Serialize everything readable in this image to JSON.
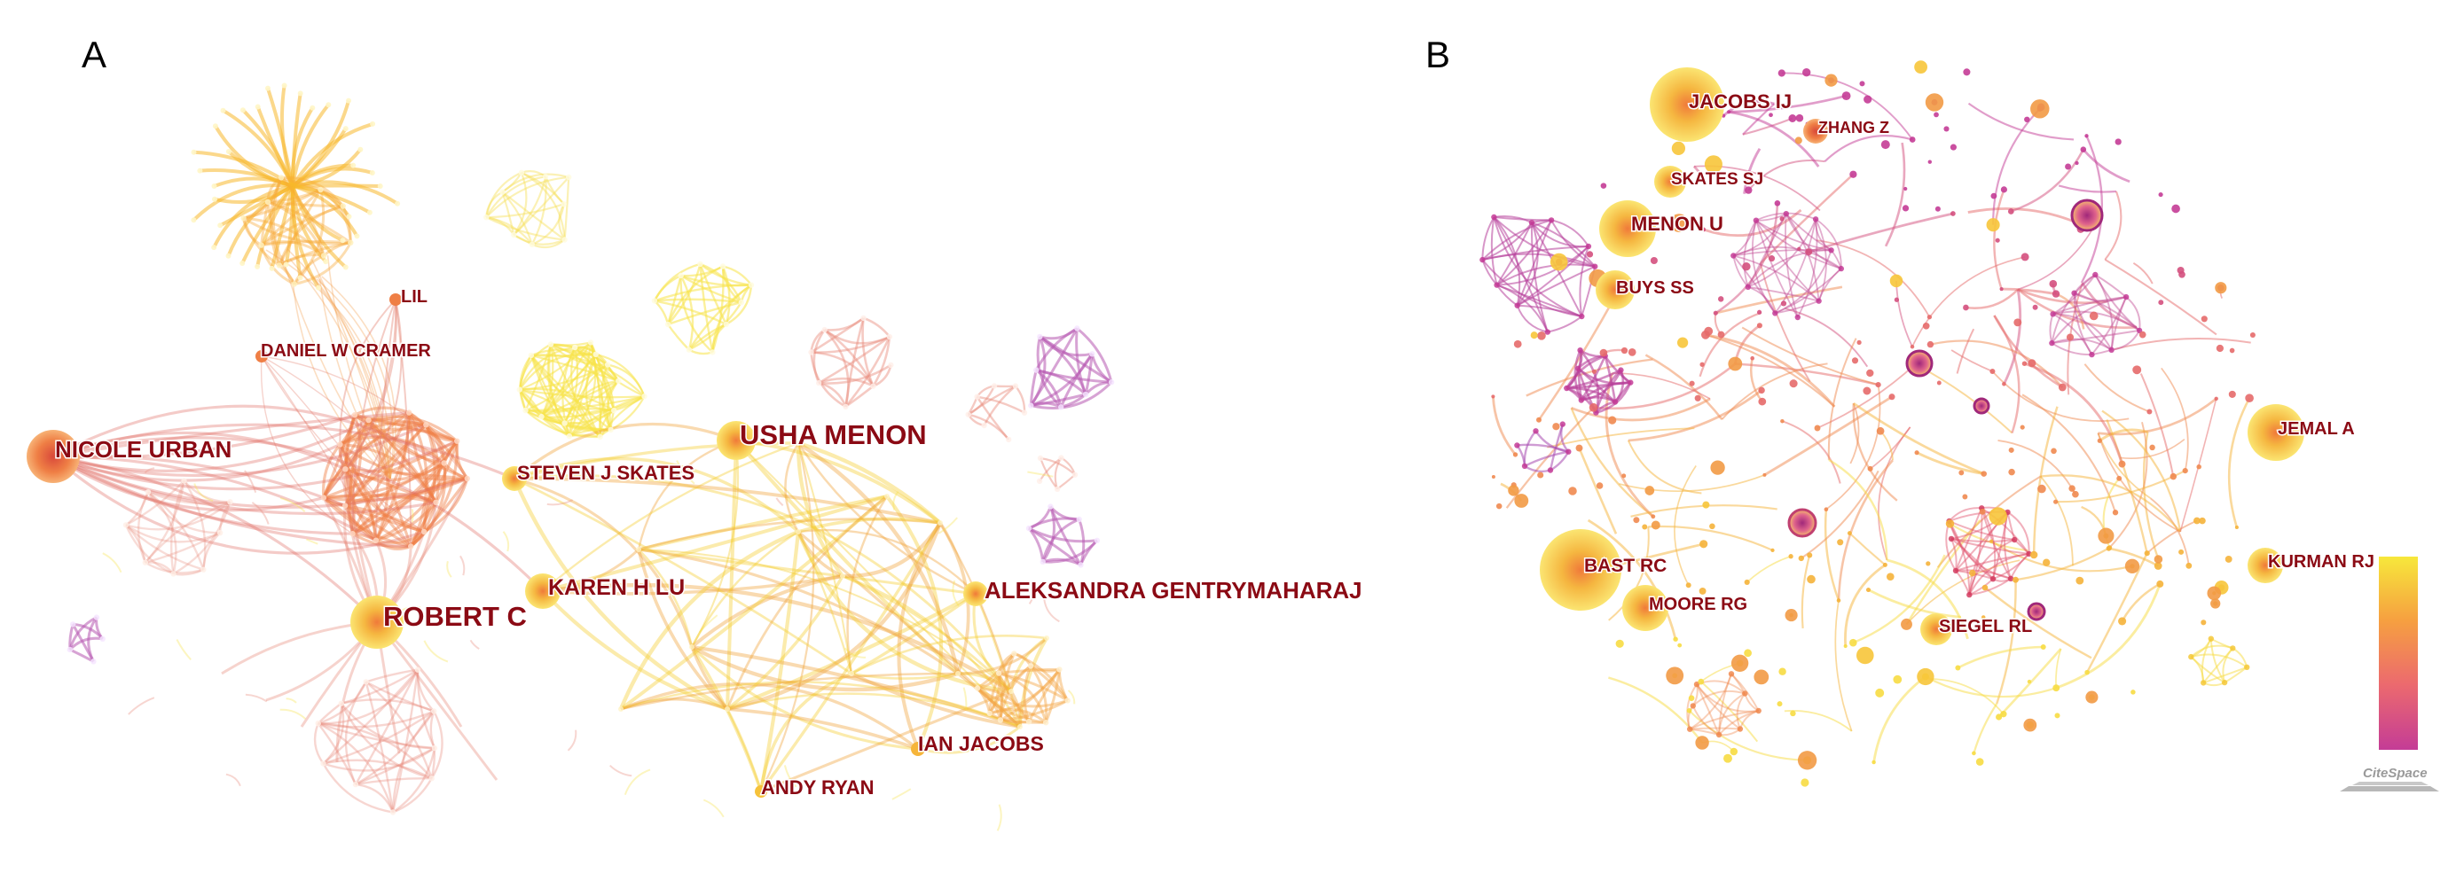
{
  "panels": {
    "a": {
      "letter": "A",
      "authors": [
        "NICOLE URBAN",
        "ROBERT C",
        "USHA MENON",
        "ALEKSANDRA GENTRYMAHARAJ",
        "KAREN H LU",
        "STEVEN J SKATES",
        "DANIEL W CRAMER",
        "LIL",
        "IAN JACOBS",
        "ANDY RYAN"
      ]
    },
    "b": {
      "letter": "B",
      "authors": [
        "JACOBS IJ",
        "ZHANG Z",
        "SKATES SJ",
        "MENON U",
        "BUYS SS",
        "JEMAL A",
        "BAST RC",
        "MOORE RG",
        "KURMAN RJ",
        "SIEGEL RL"
      ],
      "legend_colors": [
        "#f7e83b",
        "#f6a040",
        "#ec6a6e",
        "#c43c96"
      ],
      "brand": "CiteSpace"
    }
  },
  "colors": {
    "label": "#8b0a14",
    "orange": "#ef7f45",
    "yellow": "#f6d530",
    "purple": "#b657b0",
    "salmon": "#e98a7a"
  }
}
